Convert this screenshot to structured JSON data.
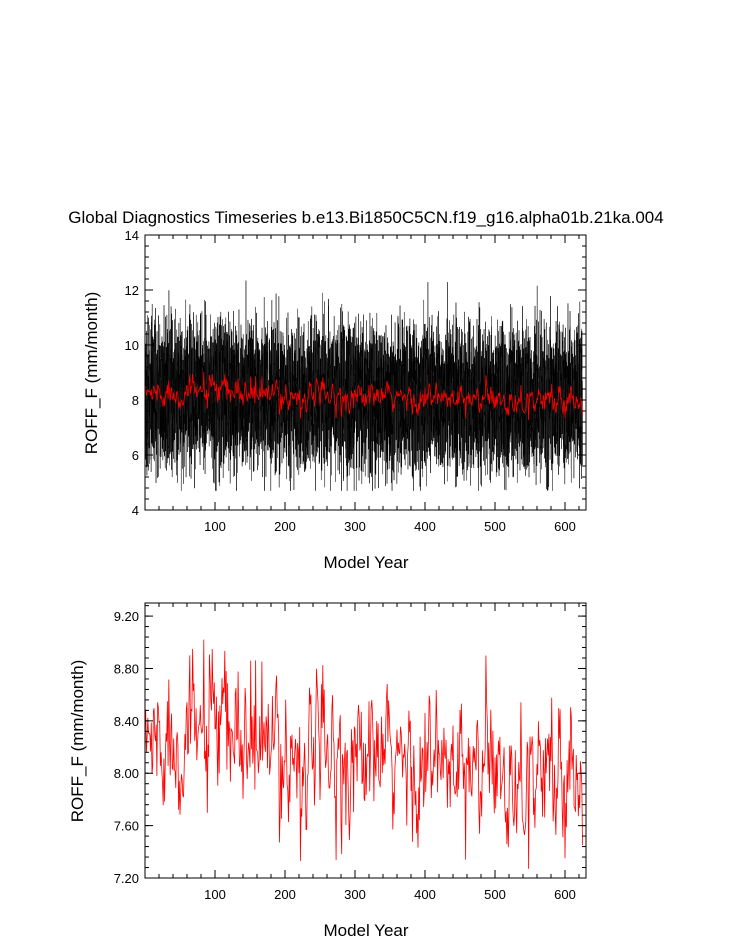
{
  "chart_data": [
    {
      "type": "line",
      "title": "Global Diagnostics Timeseries b.e13.Bi1850C5CN.f19_g16.alpha01b.21ka.004",
      "xlabel": "Model Year",
      "ylabel": "ROFF_F (mm/month)",
      "xlim": [
        0,
        630
      ],
      "ylim": [
        4,
        14
      ],
      "x_ticks": [
        100,
        200,
        300,
        400,
        500,
        600
      ],
      "x_tick_labels": [
        "100",
        "200",
        "300",
        "400",
        "500",
        "600"
      ],
      "y_ticks": [
        4,
        6,
        8,
        10,
        12,
        14
      ],
      "y_tick_labels": [
        "4",
        "6",
        "8",
        "10",
        "12",
        "14"
      ],
      "grid": false,
      "series": [
        {
          "kind": "monthly",
          "color": "#000000",
          "n_points": 7500,
          "mean_by_century": [
            [
              0,
              8.2
            ],
            [
              100,
              8.25
            ],
            [
              200,
              8.15
            ],
            [
              300,
              8.1
            ],
            [
              400,
              8.05
            ],
            [
              500,
              8.0
            ],
            [
              625,
              8.0
            ]
          ],
          "seasonal_amplitude": 1.6,
          "noise_sd": 0.8,
          "min_approx": 4.7,
          "max_approx": 12.9
        },
        {
          "kind": "annual",
          "color": "#ff0000",
          "n_points": 625,
          "mean_by_century": [
            [
              0,
              8.25
            ],
            [
              100,
              8.3
            ],
            [
              200,
              8.15
            ],
            [
              300,
              8.1
            ],
            [
              400,
              8.05
            ],
            [
              500,
              8.0
            ],
            [
              625,
              8.0
            ]
          ],
          "noise_sd": 0.25
        }
      ]
    },
    {
      "type": "line",
      "title": "",
      "xlabel": "Model Year",
      "ylabel": "ROFF_F (mm/month)",
      "xlim": [
        0,
        630
      ],
      "ylim": [
        7.2,
        9.3
      ],
      "x_ticks": [
        100,
        200,
        300,
        400,
        500,
        600
      ],
      "x_tick_labels": [
        "100",
        "200",
        "300",
        "400",
        "500",
        "600"
      ],
      "y_ticks": [
        7.2,
        7.6,
        8.0,
        8.4,
        8.8,
        9.2
      ],
      "y_tick_labels": [
        "7.20",
        "7.60",
        "8.00",
        "8.40",
        "8.80",
        "9.20"
      ],
      "grid": false,
      "series": [
        {
          "kind": "annual",
          "color": "#ff0000",
          "n_points": 625,
          "mean_by_century": [
            [
              0,
              8.25
            ],
            [
              100,
              8.3
            ],
            [
              200,
              8.15
            ],
            [
              300,
              8.1
            ],
            [
              400,
              8.05
            ],
            [
              500,
              8.0
            ],
            [
              625,
              8.0
            ]
          ],
          "noise_sd": 0.25,
          "notable_points": [
            [
              84,
              9.02
            ],
            [
              222,
              7.33
            ],
            [
              548,
              7.27
            ],
            [
              458,
              7.34
            ],
            [
              625,
              7.45
            ]
          ]
        }
      ]
    }
  ]
}
